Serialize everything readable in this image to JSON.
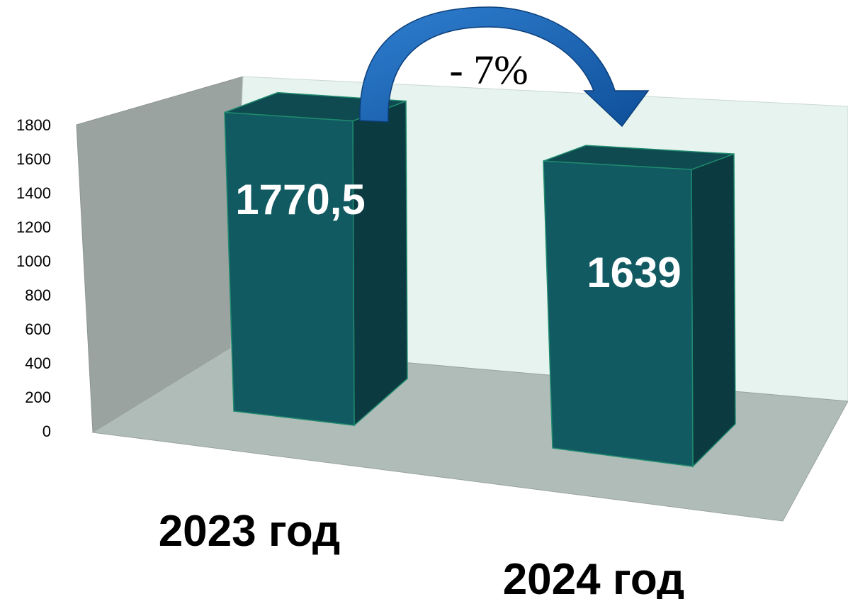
{
  "chart_data": {
    "type": "bar",
    "categories": [
      "2023 год",
      "2024 год"
    ],
    "values": [
      1770.5,
      1639
    ],
    "value_labels": [
      "1770,5",
      "1639"
    ],
    "y_ticks": [
      "0",
      "200",
      "400",
      "600",
      "800",
      "1000",
      "1200",
      "1400",
      "1600",
      "1800"
    ],
    "ylim": [
      0,
      1800
    ],
    "annotation": {
      "text": "- 7%",
      "from": 0,
      "to": 1
    },
    "colors": {
      "bar_front": "#125a62",
      "bar_side": "#0b3a40",
      "bar_top": "#0e4a50",
      "floor": "#b0bcb8",
      "left_wall": "#9aa39f",
      "back_wall": "#e6f3ee",
      "arrow": "#1a5fae"
    }
  }
}
